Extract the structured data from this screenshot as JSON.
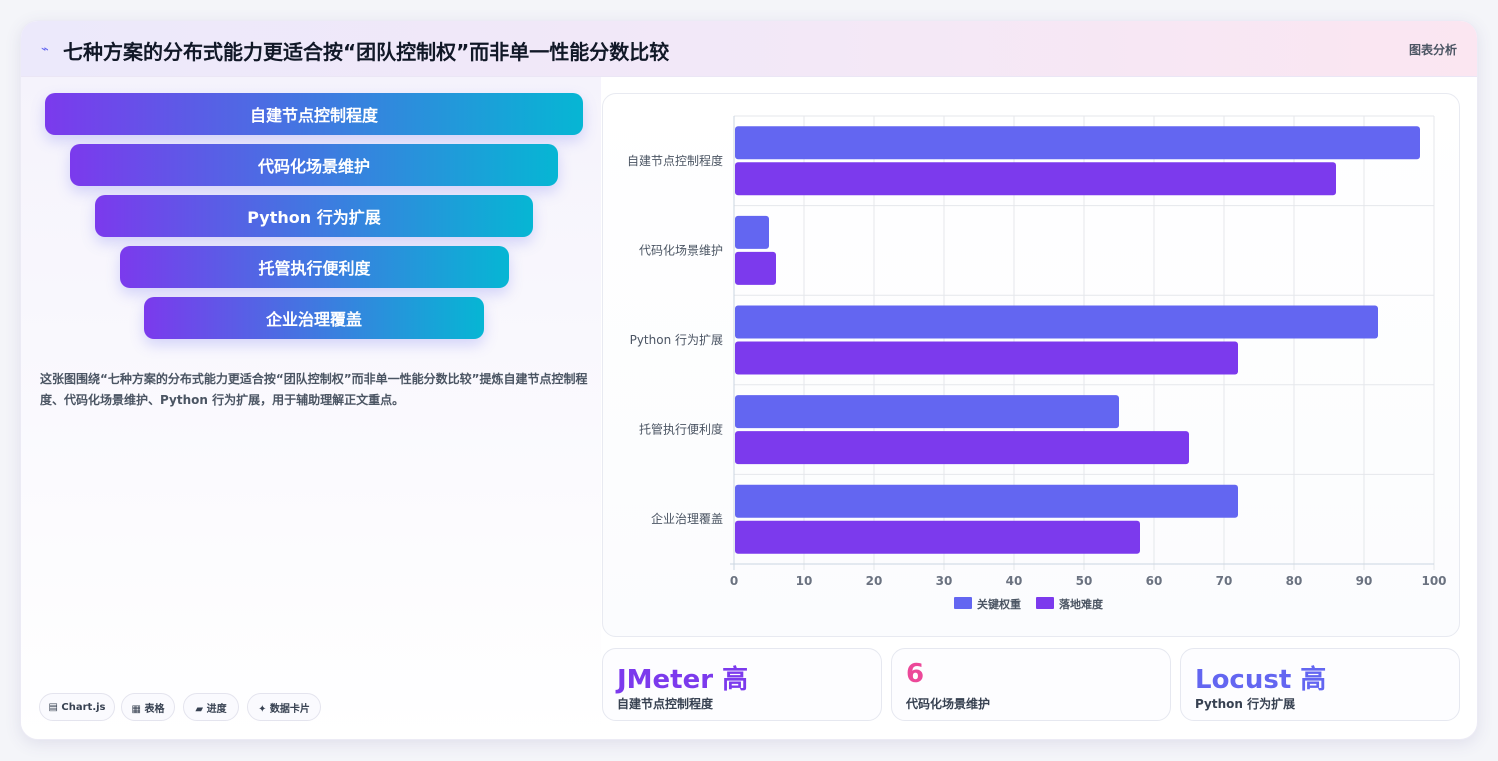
{
  "header": {
    "title": "七种方案的分布式能力更适合按“团队控制权”而非单一性能分数比较",
    "tag": "图表分析"
  },
  "funnel": [
    {
      "label": "自建节点控制程度"
    },
    {
      "label": "代码化场景维护"
    },
    {
      "label": "Python 行为扩展"
    },
    {
      "label": "托管执行便利度"
    },
    {
      "label": "企业治理覆盖"
    }
  ],
  "description": "这张图围绕“七种方案的分布式能力更适合按“团队控制权”而非单一性能分数比较”提炼自建节点控制程度、代码化场景维护、Python 行为扩展，用于辅助理解正文重点。",
  "pills": [
    "▤ Chart.js",
    "▦ 表格",
    "▰ 进度",
    "✦ 数据卡片"
  ],
  "chart_data": {
    "type": "bar",
    "orientation": "horizontal",
    "categories": [
      "自建节点控制程度",
      "代码化场景维护",
      "Python 行为扩展",
      "托管执行便利度",
      "企业治理覆盖"
    ],
    "series": [
      {
        "name": "关键权重",
        "color": "#6366f1",
        "values": [
          98,
          5,
          92,
          55,
          72
        ]
      },
      {
        "name": "落地难度",
        "color": "#7c3aed",
        "values": [
          86,
          6,
          72,
          65,
          58
        ]
      }
    ],
    "xlim": [
      0,
      100
    ],
    "xticks": [
      0,
      10,
      20,
      30,
      40,
      50,
      60,
      70,
      80,
      90,
      100
    ],
    "grid": true,
    "legend": "bottom"
  },
  "kpis": [
    {
      "value": "JMeter 高",
      "label": "自建节点控制程度",
      "color": "#7c3aed"
    },
    {
      "value": "6",
      "label": "代码化场景维护",
      "color": "#ec4899"
    },
    {
      "value": "Locust 高",
      "label": "Python 行为扩展",
      "color": "#6366f1"
    }
  ]
}
